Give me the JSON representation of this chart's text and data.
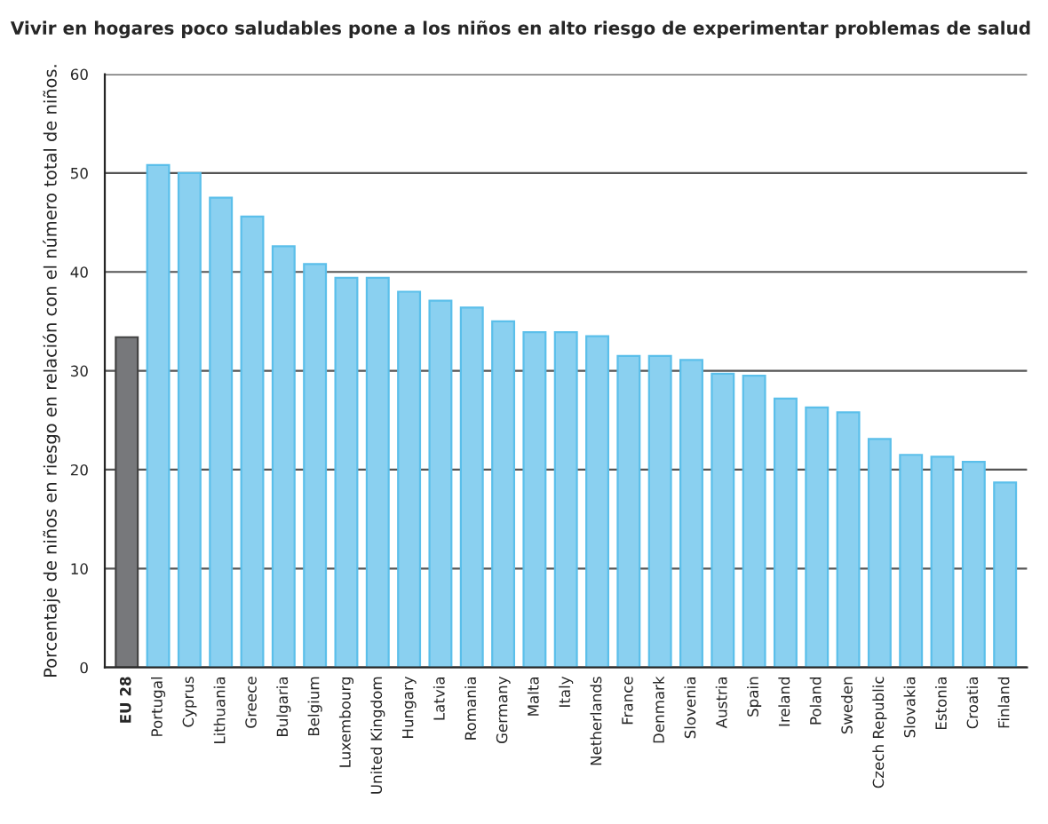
{
  "chart_data": {
    "type": "bar",
    "title": "Vivir en hogares poco saludables pone a los niños en alto riesgo de experimentar problemas de salud",
    "ylabel": "Porcentaje de niños en riesgo en relación con el número total de niños.",
    "categories": [
      "EU 28",
      "Portugal",
      "Cyprus",
      "Lithuania",
      "Greece",
      "Bulgaria",
      "Belgium",
      "Luxembourg",
      "United Kingdom",
      "Hungary",
      "Latvia",
      "Romania",
      "Germany",
      "Malta",
      "Italy",
      "Netherlands",
      "France",
      "Denmark",
      "Slovenia",
      "Austria",
      "Spain",
      "Ireland",
      "Poland",
      "Sweden",
      "Czech Republic",
      "Slovakia",
      "Estonia",
      "Croatia",
      "Finland"
    ],
    "values": [
      33.4,
      50.8,
      50.0,
      47.5,
      45.6,
      42.6,
      40.8,
      39.4,
      39.4,
      38.0,
      37.1,
      36.4,
      35.0,
      33.9,
      33.9,
      33.5,
      31.5,
      31.5,
      31.1,
      29.7,
      29.5,
      27.2,
      26.3,
      25.8,
      23.1,
      21.5,
      21.3,
      20.8,
      18.7
    ],
    "colors": [
      "#77787b",
      "#8ad0f0",
      "#8ad0f0",
      "#8ad0f0",
      "#8ad0f0",
      "#8ad0f0",
      "#8ad0f0",
      "#8ad0f0",
      "#8ad0f0",
      "#8ad0f0",
      "#8ad0f0",
      "#8ad0f0",
      "#8ad0f0",
      "#8ad0f0",
      "#8ad0f0",
      "#8ad0f0",
      "#8ad0f0",
      "#8ad0f0",
      "#8ad0f0",
      "#8ad0f0",
      "#8ad0f0",
      "#8ad0f0",
      "#8ad0f0",
      "#8ad0f0",
      "#8ad0f0",
      "#8ad0f0",
      "#8ad0f0",
      "#8ad0f0",
      "#8ad0f0"
    ],
    "ylim": [
      0,
      60
    ],
    "yticks": [
      0,
      10,
      20,
      30,
      40,
      50,
      60
    ],
    "grid": "y",
    "legend": false
  }
}
